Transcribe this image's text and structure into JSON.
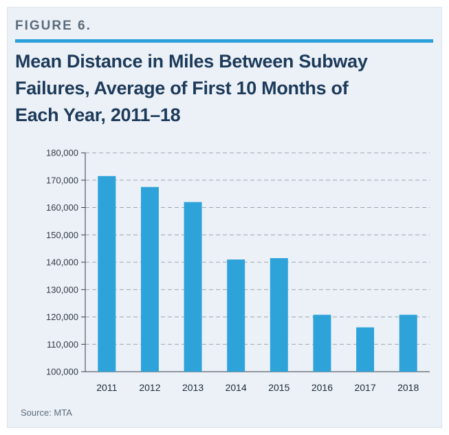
{
  "figure_label": "FIGURE 6.",
  "title_lines": [
    "Mean Distance in Miles Between Subway",
    "Failures, Average of First 10 Months of",
    "Each Year, 2011–18"
  ],
  "source": "Source: MTA",
  "colors": {
    "bar": "#2ea3da",
    "accent_rule": "#2a9fd8",
    "title": "#1c3a5a",
    "panel": "#ecf1f7"
  },
  "chart_data": {
    "type": "bar",
    "categories": [
      "2011",
      "2012",
      "2013",
      "2014",
      "2015",
      "2016",
      "2017",
      "2018"
    ],
    "values": [
      171500,
      167500,
      162000,
      141000,
      141500,
      120800,
      116200,
      120800
    ],
    "ylim": [
      100000,
      180000
    ],
    "yticks": [
      "100,000",
      "110,000",
      "120,000",
      "130,000",
      "140,000",
      "150,000",
      "160,000",
      "170,000",
      "180,000"
    ],
    "ytick_values": [
      100000,
      110000,
      120000,
      130000,
      140000,
      150000,
      160000,
      170000,
      180000
    ],
    "grid": "dashed horizontal",
    "xlabel": "",
    "ylabel": ""
  }
}
